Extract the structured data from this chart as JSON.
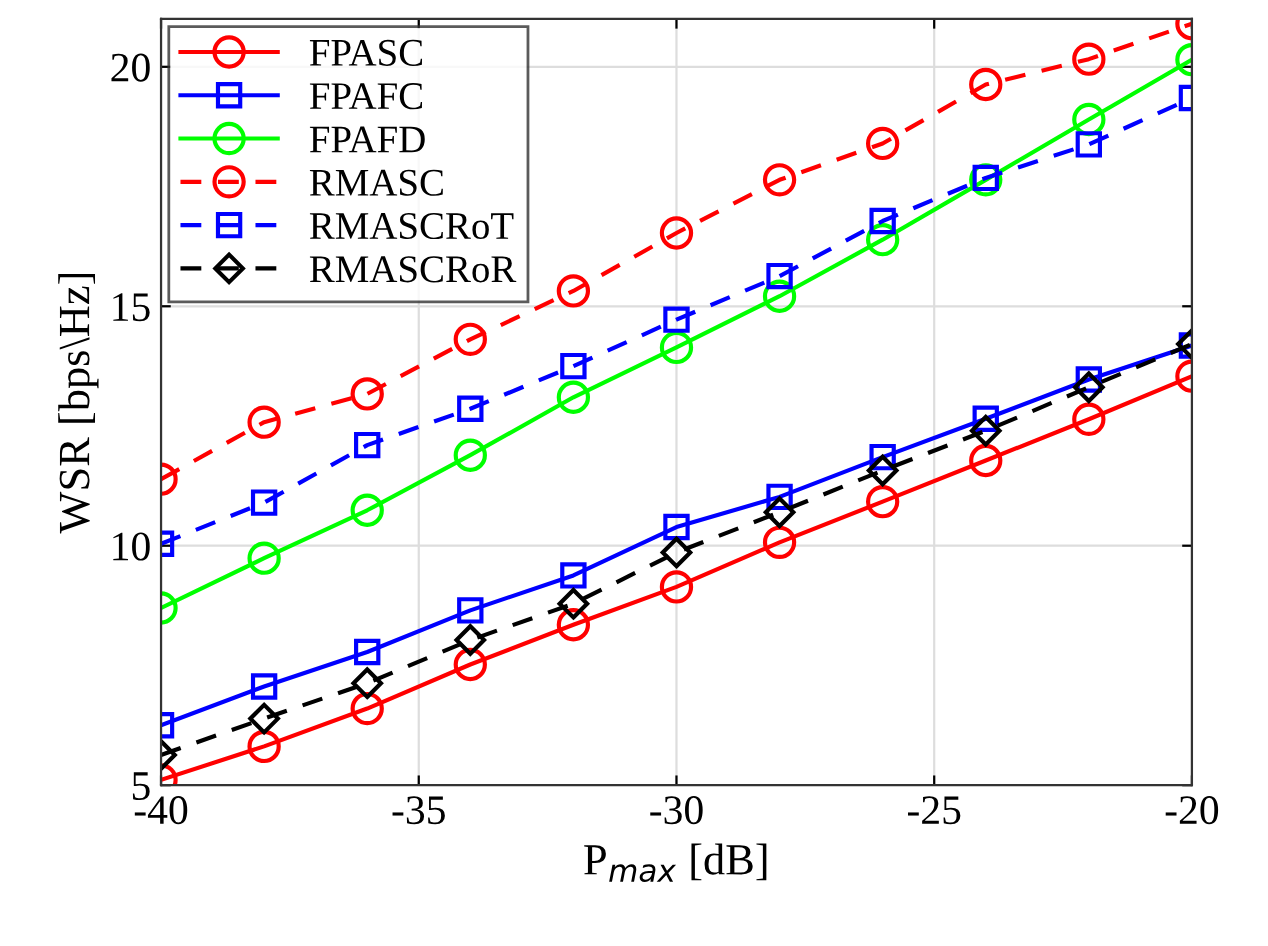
{
  "chart_data": {
    "type": "line",
    "xlabel": "P$_{max}$ [dB]",
    "ylabel": "WSR [bps\\Hz]",
    "x": [
      -40,
      -38,
      -36,
      -34,
      -32,
      -30,
      -28,
      -26,
      -24,
      -22,
      -20
    ],
    "xlim": [
      -40,
      -20
    ],
    "xticks": [
      -40,
      -35,
      -30,
      -25,
      -20
    ],
    "ylim": [
      5,
      21
    ],
    "yticks": [
      5,
      10,
      15,
      20
    ],
    "grid": true,
    "legend": "top left",
    "series": [
      {
        "name": "FPASC",
        "color": "#ff0000",
        "marker": "circle",
        "line_style": "solid",
        "values": [
          5.11,
          5.81,
          6.6,
          7.52,
          8.35,
          9.14,
          10.07,
          10.92,
          11.78,
          12.64,
          13.54
        ]
      },
      {
        "name": "FPAFC",
        "color": "#0000ff",
        "marker": "square",
        "line_style": "solid",
        "values": [
          6.25,
          7.06,
          7.78,
          8.65,
          9.38,
          10.39,
          11.02,
          11.85,
          12.65,
          13.47,
          14.18
        ]
      },
      {
        "name": "FPAFD",
        "color": "#00ff00",
        "marker": "circle",
        "line_style": "solid",
        "values": [
          8.7,
          9.74,
          10.74,
          11.89,
          13.1,
          14.14,
          15.21,
          16.39,
          17.64,
          18.9,
          20.15
        ]
      },
      {
        "name": "RMASC",
        "color": "#ff0000",
        "marker": "circle",
        "line_style": "dashed",
        "values": [
          11.39,
          12.58,
          13.17,
          14.31,
          15.32,
          16.53,
          17.64,
          18.4,
          19.63,
          20.16,
          20.9
        ]
      },
      {
        "name": "RMASCRoT",
        "color": "#0000ff",
        "marker": "square",
        "line_style": "dashed",
        "values": [
          10.04,
          10.9,
          12.1,
          12.86,
          13.75,
          14.72,
          15.63,
          16.78,
          17.68,
          18.38,
          19.35
        ]
      },
      {
        "name": "RMASCRoR",
        "color": "#000000",
        "marker": "diamond",
        "line_style": "dashed",
        "values": [
          5.63,
          6.39,
          7.13,
          8.03,
          8.79,
          9.86,
          10.7,
          11.57,
          12.4,
          13.31,
          14.21
        ]
      }
    ]
  }
}
